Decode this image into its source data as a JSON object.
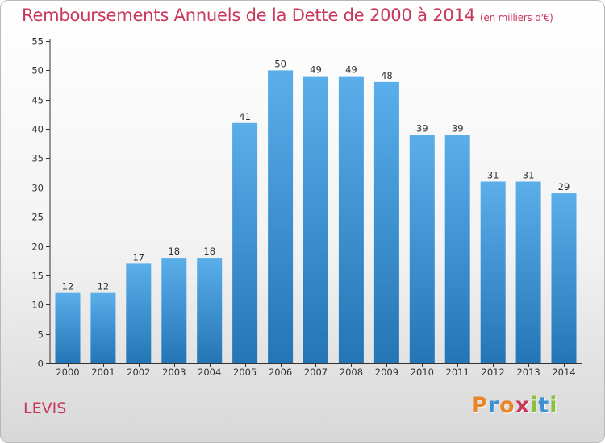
{
  "header": {
    "title": "Remboursements Annuels de la Dette de 2000 à 2014",
    "unit": "(en milliers d'€)"
  },
  "footer": {
    "commune": "LEVIS",
    "brand": "Proxiti"
  },
  "colors": {
    "title": "#c8385c",
    "bar_top": "#5aaeea",
    "bar_bottom": "#2475b5",
    "axis": "#333333",
    "brand_letters": [
      "#e8842a",
      "#3c8fd3",
      "#e8842a",
      "#c8385c",
      "#8bbf3c",
      "#3c8fd3",
      "#8bbf3c"
    ]
  },
  "chart_data": {
    "type": "bar",
    "title": "Remboursements Annuels de la Dette de 2000 à 2014",
    "ylabel": "(en milliers d'€)",
    "categories": [
      "2000",
      "2001",
      "2002",
      "2003",
      "2004",
      "2005",
      "2006",
      "2007",
      "2008",
      "2009",
      "2010",
      "2011",
      "2012",
      "2013",
      "2014"
    ],
    "values": [
      12,
      12,
      17,
      18,
      18,
      41,
      50,
      49,
      49,
      48,
      39,
      39,
      31,
      31,
      29
    ],
    "ylim": [
      0,
      55
    ],
    "yticks": [
      0,
      5,
      10,
      15,
      20,
      25,
      30,
      35,
      40,
      45,
      50,
      55
    ],
    "grid": false,
    "legend": "none"
  }
}
